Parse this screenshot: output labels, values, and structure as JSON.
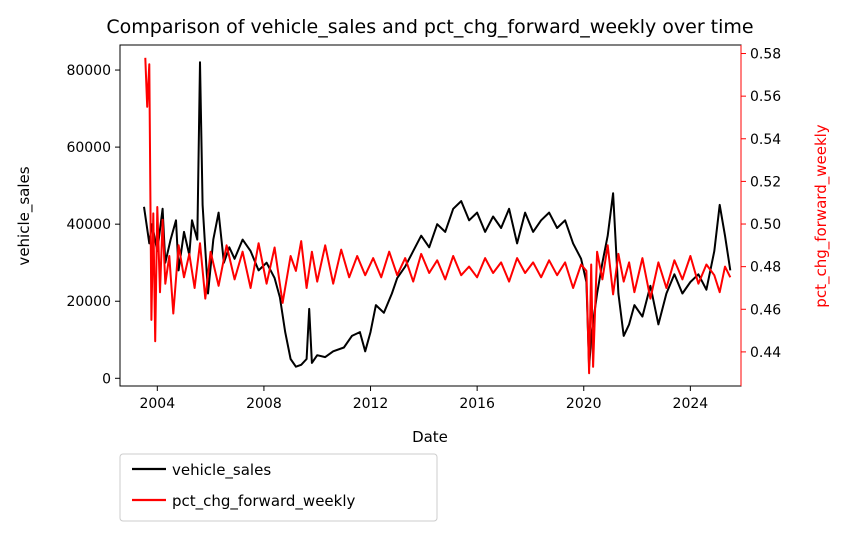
{
  "chart_data": {
    "type": "line",
    "title": "Comparison of vehicle_sales and pct_chg_forward_weekly over time",
    "xlabel": "Date",
    "x_ticks": [
      "2004",
      "2008",
      "2012",
      "2016",
      "2020",
      "2024"
    ],
    "x_range": [
      2002.6,
      2025.9
    ],
    "left_axis": {
      "label": "vehicle_sales",
      "color": "#000000",
      "ylim": [
        -2000,
        86500
      ],
      "ticks": [
        "0",
        "20000",
        "40000",
        "60000",
        "80000"
      ]
    },
    "right_axis": {
      "label": "pct_chg_forward_weekly",
      "color": "#ff0000",
      "ylim": [
        0.424,
        0.584
      ],
      "ticks": [
        "0.44",
        "0.46",
        "0.48",
        "0.50",
        "0.52",
        "0.54",
        "0.56",
        "0.58"
      ]
    },
    "legend_position": "below-left",
    "grid": false,
    "series": [
      {
        "name": "vehicle_sales",
        "axis": "left",
        "color": "#000000",
        "x": [
          2003.5,
          2003.7,
          2003.8,
          2004.0,
          2004.2,
          2004.3,
          2004.5,
          2004.7,
          2004.8,
          2005.0,
          2005.2,
          2005.3,
          2005.5,
          2005.6,
          2005.7,
          2005.9,
          2006.1,
          2006.3,
          2006.5,
          2006.7,
          2006.9,
          2007.2,
          2007.5,
          2007.8,
          2008.1,
          2008.4,
          2008.6,
          2008.8,
          2009.0,
          2009.2,
          2009.4,
          2009.6,
          2009.7,
          2009.8,
          2010.0,
          2010.3,
          2010.6,
          2011.0,
          2011.3,
          2011.6,
          2011.8,
          2012.0,
          2012.2,
          2012.5,
          2012.8,
          2013.0,
          2013.3,
          2013.6,
          2013.9,
          2014.2,
          2014.5,
          2014.8,
          2015.1,
          2015.4,
          2015.7,
          2016.0,
          2016.3,
          2016.6,
          2016.9,
          2017.2,
          2017.5,
          2017.8,
          2018.1,
          2018.4,
          2018.7,
          2019.0,
          2019.3,
          2019.6,
          2019.9,
          2020.1,
          2020.2,
          2020.3,
          2020.5,
          2020.7,
          2020.9,
          2021.1,
          2021.3,
          2021.5,
          2021.7,
          2021.9,
          2022.2,
          2022.5,
          2022.8,
          2023.1,
          2023.4,
          2023.7,
          2024.0,
          2024.3,
          2024.6,
          2024.9,
          2025.1,
          2025.3,
          2025.5
        ],
        "values": [
          44500,
          35000,
          40000,
          33000,
          44000,
          30000,
          36000,
          41000,
          28000,
          38000,
          32000,
          41000,
          36000,
          82000,
          45000,
          22000,
          36000,
          43000,
          30000,
          34000,
          31000,
          36000,
          33000,
          28000,
          30000,
          26000,
          21000,
          12000,
          5000,
          3000,
          3500,
          5000,
          18000,
          4000,
          6000,
          5500,
          7000,
          8000,
          11000,
          12000,
          7000,
          12000,
          19000,
          17000,
          22000,
          26000,
          29000,
          33000,
          37000,
          34000,
          40000,
          38000,
          44000,
          46000,
          41000,
          43000,
          38000,
          42000,
          39000,
          44000,
          35000,
          43000,
          38000,
          41000,
          43000,
          39000,
          41000,
          35000,
          31000,
          25000,
          3000,
          12000,
          22000,
          30000,
          37000,
          48000,
          22000,
          11000,
          14000,
          19000,
          16000,
          24000,
          14000,
          22000,
          27000,
          22000,
          25000,
          27000,
          23000,
          33000,
          45000,
          37000,
          28000
        ]
      },
      {
        "name": "pct_chg_forward_weekly",
        "axis": "right",
        "color": "#ff0000",
        "x": [
          2003.55,
          2003.62,
          2003.7,
          2003.78,
          2003.85,
          2003.92,
          2004.0,
          2004.1,
          2004.2,
          2004.3,
          2004.45,
          2004.6,
          2004.8,
          2005.0,
          2005.2,
          2005.4,
          2005.6,
          2005.8,
          2006.0,
          2006.3,
          2006.6,
          2006.9,
          2007.2,
          2007.5,
          2007.8,
          2008.1,
          2008.4,
          2008.7,
          2009.0,
          2009.2,
          2009.4,
          2009.6,
          2009.8,
          2010.0,
          2010.3,
          2010.6,
          2010.9,
          2011.2,
          2011.5,
          2011.8,
          2012.1,
          2012.4,
          2012.7,
          2013.0,
          2013.3,
          2013.6,
          2013.9,
          2014.2,
          2014.5,
          2014.8,
          2015.1,
          2015.4,
          2015.7,
          2016.0,
          2016.3,
          2016.6,
          2016.9,
          2017.2,
          2017.5,
          2017.8,
          2018.1,
          2018.4,
          2018.7,
          2019.0,
          2019.3,
          2019.6,
          2019.9,
          2020.1,
          2020.2,
          2020.28,
          2020.35,
          2020.5,
          2020.7,
          2020.9,
          2021.1,
          2021.3,
          2021.5,
          2021.7,
          2021.9,
          2022.2,
          2022.5,
          2022.8,
          2023.1,
          2023.4,
          2023.7,
          2024.0,
          2024.3,
          2024.6,
          2024.9,
          2025.1,
          2025.3,
          2025.5
        ],
        "values": [
          0.578,
          0.555,
          0.575,
          0.455,
          0.505,
          0.445,
          0.508,
          0.468,
          0.502,
          0.472,
          0.485,
          0.458,
          0.49,
          0.475,
          0.486,
          0.47,
          0.491,
          0.465,
          0.487,
          0.471,
          0.49,
          0.474,
          0.487,
          0.47,
          0.491,
          0.472,
          0.489,
          0.463,
          0.485,
          0.478,
          0.492,
          0.47,
          0.487,
          0.473,
          0.49,
          0.472,
          0.488,
          0.475,
          0.485,
          0.476,
          0.484,
          0.475,
          0.487,
          0.476,
          0.484,
          0.473,
          0.486,
          0.477,
          0.483,
          0.474,
          0.485,
          0.476,
          0.48,
          0.475,
          0.484,
          0.477,
          0.482,
          0.473,
          0.484,
          0.477,
          0.482,
          0.475,
          0.483,
          0.476,
          0.482,
          0.47,
          0.481,
          0.478,
          0.43,
          0.481,
          0.433,
          0.487,
          0.474,
          0.49,
          0.467,
          0.486,
          0.473,
          0.482,
          0.468,
          0.484,
          0.465,
          0.482,
          0.47,
          0.483,
          0.474,
          0.485,
          0.472,
          0.481,
          0.476,
          0.468,
          0.48,
          0.475
        ]
      }
    ]
  }
}
